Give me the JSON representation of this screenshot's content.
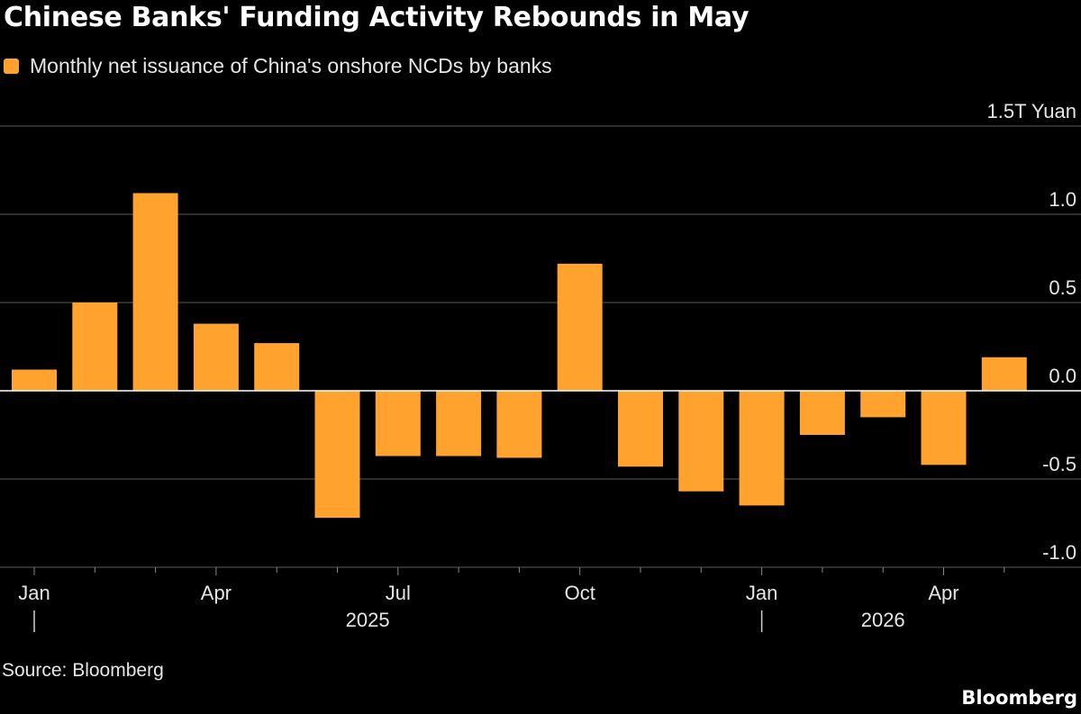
{
  "header": {
    "title": "Chinese Banks' Funding Activity Rebounds in May"
  },
  "legend": {
    "label": "Monthly net issuance of China's onshore NCDs by banks",
    "color": "#ffa32e"
  },
  "footer": {
    "source": "Source: Bloomberg",
    "brand": "Bloomberg"
  },
  "chart_data": {
    "type": "bar",
    "categories": [
      "Jan 2025",
      "Feb 2025",
      "Mar 2025",
      "Apr 2025",
      "May 2025",
      "Jun 2025",
      "Jul 2025",
      "Aug 2025",
      "Sep 2025",
      "Oct 2025",
      "Nov 2025",
      "Dec 2025",
      "Jan 2026",
      "Feb 2026",
      "Mar 2026",
      "Apr 2026",
      "May 2026"
    ],
    "series": [
      {
        "name": "Monthly net issuance of China's onshore NCDs by banks",
        "color": "#ffa32e",
        "values": [
          0.12,
          0.5,
          1.12,
          0.38,
          0.27,
          -0.72,
          -0.37,
          -0.37,
          -0.38,
          0.72,
          -0.43,
          -0.57,
          -0.65,
          -0.25,
          -0.15,
          -0.42,
          0.19
        ]
      }
    ],
    "ylim": [
      -1.0,
      1.5
    ],
    "yticks": [
      {
        "value": 1.5,
        "label": "1.5T Yuan"
      },
      {
        "value": 1.0,
        "label": "1.0"
      },
      {
        "value": 0.5,
        "label": "0.5"
      },
      {
        "value": 0.0,
        "label": "0.0"
      },
      {
        "value": -0.5,
        "label": "-0.5"
      },
      {
        "value": -1.0,
        "label": "-1.0"
      }
    ],
    "xtick_labels": [
      {
        "index": 0,
        "label": "Jan"
      },
      {
        "index": 3,
        "label": "Apr"
      },
      {
        "index": 6,
        "label": "Jul"
      },
      {
        "index": 9,
        "label": "Oct"
      },
      {
        "index": 12,
        "label": "Jan"
      },
      {
        "index": 15,
        "label": "Apr"
      }
    ],
    "year_labels": [
      {
        "label": "2025",
        "start_index": 0
      },
      {
        "label": "2026",
        "start_index": 12
      }
    ],
    "grid": true,
    "legend_position": "top-left"
  }
}
